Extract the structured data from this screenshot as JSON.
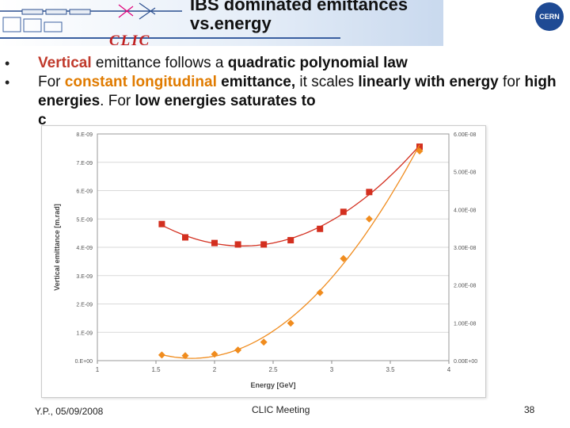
{
  "header": {
    "title_line1": "IBS dominated emittances",
    "title_line2": "vs.energy",
    "clic_logo": "CLIC",
    "cern_logo": "CERN"
  },
  "bullets": {
    "b1_red": "Vertical",
    "b1_mid": " emittance follows a ",
    "b1_end": "quadratic polynomial law",
    "b2_p1": "For ",
    "b2_orange": "constant longitudinal",
    "b2_p2": " emittance,",
    "b2_p3": "  it scales ",
    "b2_p4": "linearly with energy",
    "b2_p5": " for ",
    "b2_p6": "high energies",
    "b2_p7": ". For  ",
    "b2_p8": "low energies saturates to",
    "b2_p9": "c"
  },
  "chart_data": {
    "type": "scatter",
    "xlabel": "Energy [GeV]",
    "ylabel": "Vertical emittance [m.rad]",
    "xlim": [
      1,
      4
    ],
    "ylim_left": [
      0,
      8e-09
    ],
    "ylim_right": [
      0,
      6e-08
    ],
    "x_ticks": [
      "1",
      "1.5",
      "2",
      "2.5",
      "3",
      "3.5",
      "4"
    ],
    "y_ticks_left": [
      "0.E+00",
      "1.E-09",
      "2.E-09",
      "3.E-09",
      "4.E-09",
      "5.E-09",
      "6.E-09",
      "7.E-09",
      "8.E-09"
    ],
    "y_ticks_right": [
      "0.00E+00",
      "1.00E-08",
      "2.00E-08",
      "3.00E-08",
      "4.00E-08",
      "5.00E-08",
      "6.00E-08"
    ],
    "grid": true,
    "series": [
      {
        "axis": "left",
        "color": "#d32f1f",
        "marker": "square",
        "x": [
          1.55,
          1.75,
          2.0,
          2.2,
          2.42,
          2.65,
          2.9,
          3.1,
          3.32,
          3.75
        ],
        "y": [
          4.82e-09,
          4.35e-09,
          4.15e-09,
          4.1e-09,
          4.1e-09,
          4.25e-09,
          4.65e-09,
          5.25e-09,
          5.95e-09,
          7.55e-09
        ]
      },
      {
        "axis": "right",
        "color": "#f08c1e",
        "marker": "diamond",
        "x": [
          1.55,
          1.75,
          2.0,
          2.2,
          2.42,
          2.65,
          2.9,
          3.1,
          3.32,
          3.75
        ],
        "y": [
          1.5e-09,
          1.3e-09,
          1.7e-09,
          2.8e-09,
          4.9e-09,
          9.9e-09,
          1.8e-08,
          2.7e-08,
          3.75e-08,
          5.55e-08
        ]
      }
    ]
  },
  "footer": {
    "author_date": "Y.P., 05/09/2008",
    "meeting": "CLIC Meeting",
    "page": "38"
  }
}
